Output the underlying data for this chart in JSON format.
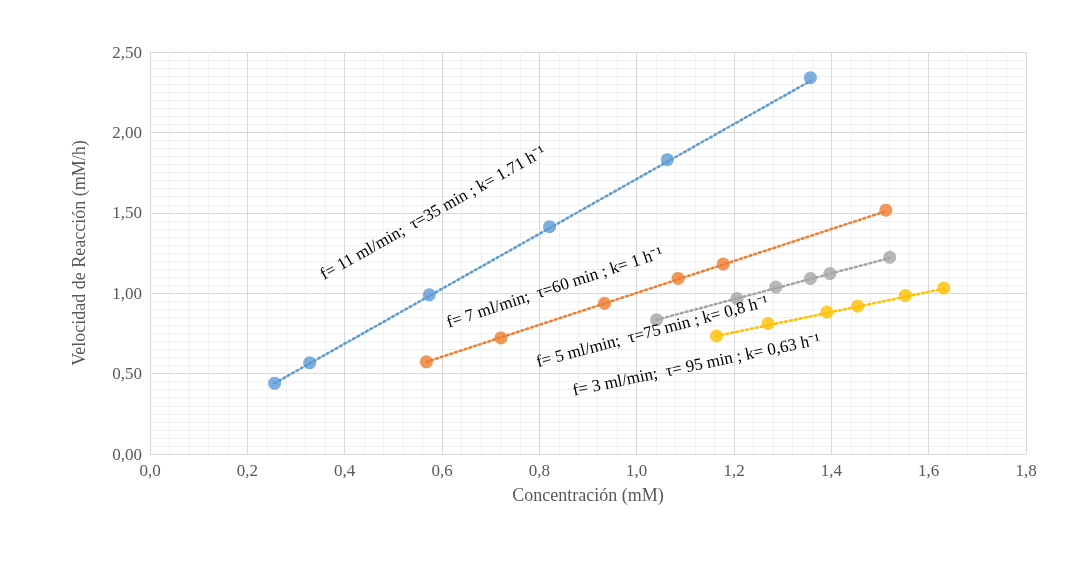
{
  "chart_data": {
    "type": "scatter",
    "xlabel": "Concentración (mM)",
    "ylabel": "Velocidad de Reacción (mM/h)",
    "xlim": [
      0,
      1.8
    ],
    "ylim": [
      0,
      2.5
    ],
    "xticks": [
      {
        "value": 0,
        "label": "0,0"
      },
      {
        "value": 0.2,
        "label": "0,2"
      },
      {
        "value": 0.4,
        "label": "0,4"
      },
      {
        "value": 0.6,
        "label": "0,6"
      },
      {
        "value": 0.8,
        "label": "0,8"
      },
      {
        "value": 1,
        "label": "1,0"
      },
      {
        "value": 1.2,
        "label": "1,2"
      },
      {
        "value": 1.4,
        "label": "1,4"
      },
      {
        "value": 1.6,
        "label": "1,6"
      },
      {
        "value": 1.8,
        "label": "1,8"
      }
    ],
    "yticks": [
      {
        "value": 0,
        "label": "0,00"
      },
      {
        "value": 0.5,
        "label": "0,50"
      },
      {
        "value": 1,
        "label": "1,00"
      },
      {
        "value": 1.5,
        "label": "1,50"
      },
      {
        "value": 2,
        "label": "2,00"
      },
      {
        "value": 2.5,
        "label": "2,50"
      }
    ],
    "grid": true,
    "marker": "circle",
    "series": [
      {
        "color": "#5b9bd5",
        "x": [
          0.256,
          0.328,
          0.574,
          0.821,
          1.063,
          1.357
        ],
        "values": [
          0.44,
          0.567,
          0.99,
          1.414,
          1.83,
          2.34
        ]
      },
      {
        "color": "#ed7d31",
        "x": [
          0.568,
          0.721,
          0.934,
          1.085,
          1.178,
          1.512
        ],
        "values": [
          0.573,
          0.722,
          0.937,
          1.092,
          1.181,
          1.516
        ]
      },
      {
        "color": "#a5a5a5",
        "x": [
          1.041,
          1.206,
          1.286,
          1.357,
          1.397,
          1.52
        ],
        "values": [
          0.835,
          0.967,
          1.038,
          1.092,
          1.122,
          1.223
        ]
      },
      {
        "color": "#ffc000",
        "x": [
          1.164,
          1.27,
          1.391,
          1.454,
          1.552,
          1.631
        ],
        "values": [
          0.734,
          0.811,
          0.883,
          0.919,
          0.985,
          1.032
        ]
      },
      {
        "type": "line",
        "color": "#5b9bd5",
        "line_style": "dotted",
        "marker": "none",
        "x": [
          0.256,
          1.357
        ],
        "values": [
          0.44,
          2.32
        ]
      },
      {
        "type": "line",
        "color": "#ed7d31",
        "line_style": "dotted",
        "marker": "none",
        "x": [
          0.568,
          1.512
        ],
        "values": [
          0.573,
          1.51
        ]
      },
      {
        "type": "line",
        "color": "#a5a5a5",
        "line_style": "dotted",
        "marker": "none",
        "x": [
          1.041,
          1.52
        ],
        "values": [
          0.835,
          1.219
        ]
      },
      {
        "type": "line",
        "color": "#ffc000",
        "line_style": "dotted",
        "marker": "none",
        "x": [
          1.164,
          1.631
        ],
        "values": [
          0.734,
          1.028
        ]
      }
    ],
    "annotations": [
      "f= 11 ml/min;  τ=35 min ; k= 1.71 h⁻¹",
      "f= 7 ml/min;  τ=60 min ; k= 1 h⁻¹",
      "f= 5 ml/min;  τ=75 min ; k= 0,8 h⁻¹",
      "f= 3 ml/min;  τ= 95 min ; k= 0,63 h⁻¹"
    ]
  }
}
